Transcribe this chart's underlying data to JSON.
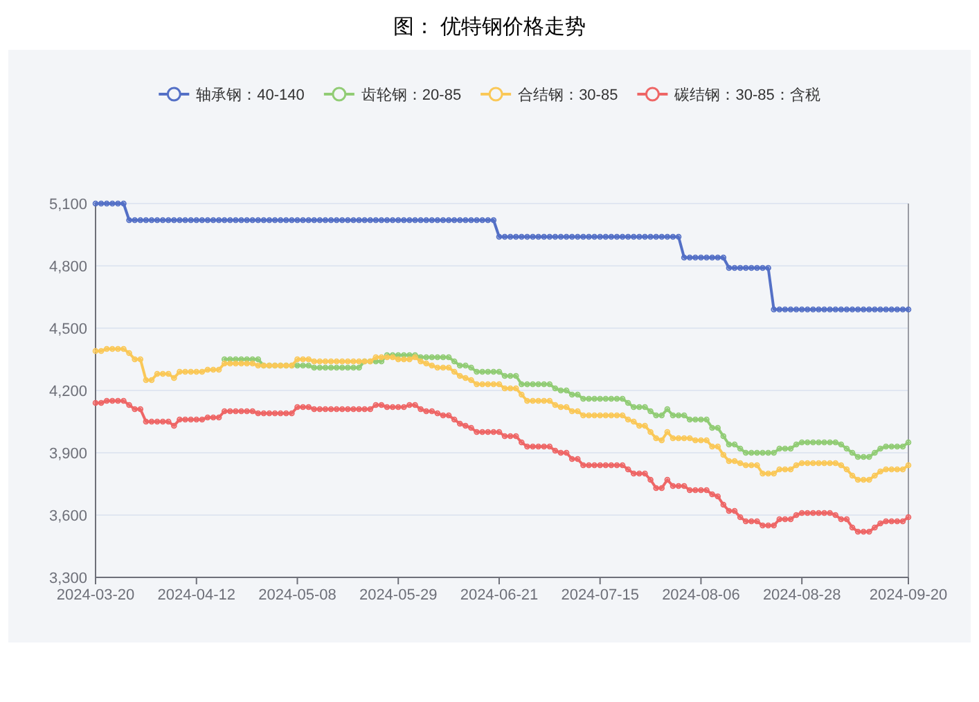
{
  "chart_data": {
    "type": "line",
    "title": "图：  优特钢价格走势",
    "categories": [
      "2024-03-20",
      null,
      null,
      null,
      null,
      null,
      null,
      null,
      null,
      null,
      null,
      null,
      null,
      null,
      null,
      null,
      null,
      null,
      "2024-04-12",
      null,
      null,
      null,
      null,
      null,
      null,
      null,
      null,
      null,
      null,
      null,
      null,
      null,
      null,
      null,
      null,
      null,
      "2024-05-08",
      null,
      null,
      null,
      null,
      null,
      null,
      null,
      null,
      null,
      null,
      null,
      null,
      null,
      null,
      null,
      null,
      null,
      "2024-05-29",
      null,
      null,
      null,
      null,
      null,
      null,
      null,
      null,
      null,
      null,
      null,
      null,
      null,
      null,
      null,
      null,
      null,
      "2024-06-21",
      null,
      null,
      null,
      null,
      null,
      null,
      null,
      null,
      null,
      null,
      null,
      null,
      null,
      null,
      null,
      null,
      null,
      "2024-07-15",
      null,
      null,
      null,
      null,
      null,
      null,
      null,
      null,
      null,
      null,
      null,
      null,
      null,
      null,
      null,
      null,
      null,
      "2024-08-06",
      null,
      null,
      null,
      null,
      null,
      null,
      null,
      null,
      null,
      null,
      null,
      null,
      null,
      null,
      null,
      null,
      null,
      "2024-08-28",
      null,
      null,
      null,
      null,
      null,
      null,
      null,
      null,
      null,
      null,
      null,
      null,
      null,
      null,
      null,
      null,
      null,
      null,
      "2024-09-20"
    ],
    "series": [
      {
        "name": "轴承钢：40-140",
        "color": "#5470c6",
        "values": [
          5100,
          5100,
          5100,
          5100,
          5100,
          5100,
          5020,
          5020,
          5020,
          5020,
          5020,
          5020,
          5020,
          5020,
          5020,
          5020,
          5020,
          5020,
          5020,
          5020,
          5020,
          5020,
          5020,
          5020,
          5020,
          5020,
          5020,
          5020,
          5020,
          5020,
          5020,
          5020,
          5020,
          5020,
          5020,
          5020,
          5020,
          5020,
          5020,
          5020,
          5020,
          5020,
          5020,
          5020,
          5020,
          5020,
          5020,
          5020,
          5020,
          5020,
          5020,
          5020,
          5020,
          5020,
          5020,
          5020,
          5020,
          5020,
          5020,
          5020,
          5020,
          5020,
          5020,
          5020,
          5020,
          5020,
          5020,
          5020,
          5020,
          5020,
          5020,
          5020,
          4940,
          4940,
          4940,
          4940,
          4940,
          4940,
          4940,
          4940,
          4940,
          4940,
          4940,
          4940,
          4940,
          4940,
          4940,
          4940,
          4940,
          4940,
          4940,
          4940,
          4940,
          4940,
          4940,
          4940,
          4940,
          4940,
          4940,
          4940,
          4940,
          4940,
          4940,
          4940,
          4940,
          4840,
          4840,
          4840,
          4840,
          4840,
          4840,
          4840,
          4840,
          4790,
          4790,
          4790,
          4790,
          4790,
          4790,
          4790,
          4790,
          4590,
          4590,
          4590,
          4590,
          4590,
          4590,
          4590,
          4590,
          4590,
          4590,
          4590,
          4590,
          4590,
          4590,
          4590,
          4590,
          4590,
          4590,
          4590,
          4590,
          4590,
          4590,
          4590,
          4590,
          4590
        ]
      },
      {
        "name": "齿轮钢：20-85",
        "color": "#91cc75",
        "values": [
          null,
          null,
          null,
          null,
          null,
          null,
          null,
          null,
          null,
          null,
          null,
          null,
          null,
          null,
          null,
          null,
          null,
          null,
          null,
          null,
          null,
          null,
          null,
          4350,
          4350,
          4350,
          4350,
          4350,
          4350,
          4350,
          4320,
          4320,
          4320,
          4320,
          4320,
          4320,
          4320,
          4320,
          4320,
          4310,
          4310,
          4310,
          4310,
          4310,
          4310,
          4310,
          4310,
          4310,
          4340,
          4340,
          4340,
          4340,
          4370,
          4370,
          4370,
          4370,
          4370,
          4370,
          4360,
          4360,
          4360,
          4360,
          4360,
          4360,
          4340,
          4320,
          4320,
          4310,
          4290,
          4290,
          4290,
          4290,
          4290,
          4270,
          4270,
          4270,
          4230,
          4230,
          4230,
          4230,
          4230,
          4230,
          4210,
          4200,
          4200,
          4180,
          4180,
          4160,
          4160,
          4160,
          4160,
          4160,
          4160,
          4160,
          4160,
          4140,
          4120,
          4120,
          4120,
          4100,
          4080,
          4080,
          4110,
          4080,
          4080,
          4080,
          4060,
          4060,
          4060,
          4060,
          4020,
          4020,
          3980,
          3940,
          3940,
          3920,
          3900,
          3900,
          3900,
          3900,
          3900,
          3900,
          3920,
          3920,
          3920,
          3940,
          3950,
          3950,
          3950,
          3950,
          3950,
          3950,
          3950,
          3940,
          3920,
          3900,
          3880,
          3880,
          3880,
          3900,
          3920,
          3930,
          3930,
          3930,
          3930,
          3950
        ]
      },
      {
        "name": "合结钢：30-85",
        "color": "#fac858",
        "values": [
          4390,
          4390,
          4400,
          4400,
          4400,
          4400,
          4380,
          4350,
          4350,
          4250,
          4250,
          4280,
          4280,
          4280,
          4260,
          4290,
          4290,
          4290,
          4290,
          4290,
          4300,
          4300,
          4300,
          4330,
          4330,
          4330,
          4330,
          4330,
          4330,
          4320,
          4320,
          4320,
          4320,
          4320,
          4320,
          4320,
          4350,
          4350,
          4350,
          4340,
          4340,
          4340,
          4340,
          4340,
          4340,
          4340,
          4340,
          4340,
          4340,
          4340,
          4360,
          4360,
          4360,
          4360,
          4350,
          4350,
          4350,
          4360,
          4340,
          4330,
          4320,
          4310,
          4310,
          4310,
          4290,
          4270,
          4260,
          4250,
          4230,
          4230,
          4230,
          4230,
          4230,
          4210,
          4210,
          4210,
          4180,
          4150,
          4150,
          4150,
          4150,
          4150,
          4130,
          4120,
          4120,
          4100,
          4100,
          4080,
          4080,
          4080,
          4080,
          4080,
          4080,
          4080,
          4080,
          4060,
          4050,
          4030,
          4030,
          4000,
          3970,
          3960,
          4000,
          3970,
          3970,
          3970,
          3970,
          3960,
          3960,
          3960,
          3930,
          3930,
          3890,
          3860,
          3860,
          3850,
          3840,
          3840,
          3840,
          3800,
          3800,
          3800,
          3820,
          3820,
          3820,
          3840,
          3850,
          3850,
          3850,
          3850,
          3850,
          3850,
          3850,
          3840,
          3820,
          3790,
          3770,
          3770,
          3770,
          3790,
          3810,
          3820,
          3820,
          3820,
          3820,
          3840
        ]
      },
      {
        "name": "碳结钢：30-85：含税",
        "color": "#ee6666",
        "values": [
          4140,
          4140,
          4150,
          4150,
          4150,
          4150,
          4130,
          4110,
          4110,
          4050,
          4050,
          4050,
          4050,
          4050,
          4030,
          4060,
          4060,
          4060,
          4060,
          4060,
          4070,
          4070,
          4070,
          4100,
          4100,
          4100,
          4100,
          4100,
          4100,
          4090,
          4090,
          4090,
          4090,
          4090,
          4090,
          4090,
          4120,
          4120,
          4120,
          4110,
          4110,
          4110,
          4110,
          4110,
          4110,
          4110,
          4110,
          4110,
          4110,
          4110,
          4130,
          4130,
          4120,
          4120,
          4120,
          4120,
          4130,
          4130,
          4110,
          4100,
          4100,
          4090,
          4080,
          4080,
          4060,
          4040,
          4030,
          4020,
          4000,
          4000,
          4000,
          4000,
          4000,
          3980,
          3980,
          3980,
          3950,
          3930,
          3930,
          3930,
          3930,
          3930,
          3910,
          3900,
          3900,
          3870,
          3870,
          3840,
          3840,
          3840,
          3840,
          3840,
          3840,
          3840,
          3840,
          3820,
          3800,
          3800,
          3800,
          3770,
          3730,
          3730,
          3770,
          3740,
          3740,
          3740,
          3720,
          3720,
          3720,
          3720,
          3700,
          3690,
          3650,
          3620,
          3620,
          3590,
          3570,
          3570,
          3570,
          3550,
          3550,
          3550,
          3580,
          3580,
          3580,
          3600,
          3610,
          3610,
          3610,
          3610,
          3610,
          3610,
          3600,
          3580,
          3580,
          3540,
          3520,
          3520,
          3520,
          3540,
          3560,
          3570,
          3570,
          3570,
          3570,
          3590
        ]
      }
    ],
    "ylim": [
      3300,
      5100
    ],
    "yticks": [
      {
        "value": 3300,
        "label": "3,300"
      },
      {
        "value": 3600,
        "label": "3,600"
      },
      {
        "value": 3900,
        "label": "3,900"
      },
      {
        "value": 4200,
        "label": "4,200"
      },
      {
        "value": 4500,
        "label": "4,500"
      },
      {
        "value": 4800,
        "label": "4,800"
      },
      {
        "value": 5100,
        "label": "5,100"
      }
    ],
    "grid": "y",
    "legend": "top",
    "marker": "circle"
  }
}
